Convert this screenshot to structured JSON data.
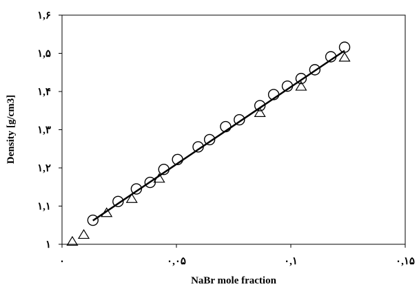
{
  "chart_data": {
    "type": "scatter",
    "title": "",
    "xlabel": "NaBr mole fraction",
    "ylabel": "Density [g/cm3]",
    "xlim": [
      0,
      0.15
    ],
    "ylim": [
      1,
      1.6
    ],
    "xticks": [
      0,
      0.05,
      0.1,
      0.15
    ],
    "yticks": [
      1,
      1.1,
      1.2,
      1.3,
      1.4,
      1.5,
      1.6
    ],
    "xtick_labels": [
      "۰",
      "۰,۰۵",
      "۰,۱",
      "۰,۱۵"
    ],
    "ytick_labels": [
      "۱",
      "۱,۱",
      "۱,۲",
      "۱,۳",
      "۱,۴",
      "۱,۵",
      "۱,۶"
    ],
    "grid": false,
    "legend": "none",
    "series": [
      {
        "marker": "circle",
        "x": [
          0.0135,
          0.0245,
          0.0325,
          0.0385,
          0.0445,
          0.0505,
          0.0595,
          0.0645,
          0.0715,
          0.0775,
          0.0865,
          0.0925,
          0.0985,
          0.1045,
          0.1105,
          0.1175,
          0.1235
        ],
        "y": [
          1.063,
          1.112,
          1.145,
          1.162,
          1.196,
          1.222,
          1.255,
          1.274,
          1.308,
          1.326,
          1.363,
          1.392,
          1.414,
          1.434,
          1.457,
          1.491,
          1.516
        ]
      },
      {
        "marker": "triangle",
        "x": [
          0.0045,
          0.0095,
          0.0195,
          0.0305,
          0.0425,
          0.0865,
          0.1045,
          0.1235
        ],
        "y": [
          1.008,
          1.026,
          1.083,
          1.12,
          1.173,
          1.345,
          1.414,
          1.49
        ]
      },
      {
        "marker": "line",
        "x": [
          0.0135,
          0.1235
        ],
        "y": [
          1.062,
          1.507
        ]
      }
    ]
  }
}
